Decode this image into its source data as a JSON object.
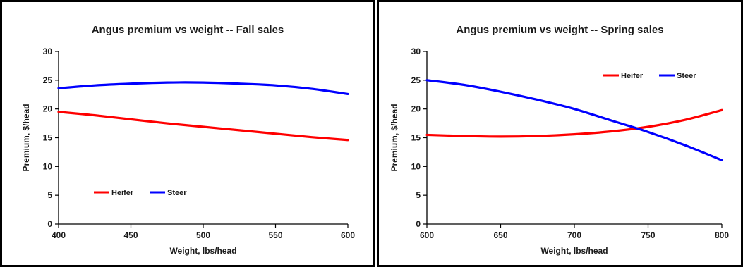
{
  "chart_data": [
    {
      "type": "line",
      "title": "Angus premium vs weight -- Fall sales",
      "xlabel": "Weight, lbs/head",
      "ylabel": "Premium, $/head",
      "xlim": [
        400,
        600
      ],
      "ylim": [
        0,
        30
      ],
      "xticks": [
        400,
        450,
        500,
        550,
        600
      ],
      "yticks": [
        0,
        5,
        10,
        15,
        20,
        25,
        30
      ],
      "grid": false,
      "legend": "bottom-left",
      "x": [
        400,
        425,
        450,
        475,
        500,
        525,
        550,
        575,
        600
      ],
      "series": [
        {
          "name": "Heifer",
          "color": "#ff0000",
          "values": [
            19.5,
            18.9,
            18.2,
            17.5,
            16.9,
            16.3,
            15.7,
            15.1,
            14.6
          ]
        },
        {
          "name": "Steer",
          "color": "#0000ff",
          "values": [
            23.6,
            24.1,
            24.4,
            24.6,
            24.6,
            24.4,
            24.1,
            23.5,
            22.6
          ]
        }
      ]
    },
    {
      "type": "line",
      "title": "Angus premium vs weight -- Spring sales",
      "xlabel": "Weight, lbs/head",
      "ylabel": "Premium, $/head",
      "xlim": [
        600,
        800
      ],
      "ylim": [
        0,
        30
      ],
      "xticks": [
        600,
        650,
        700,
        750,
        800
      ],
      "yticks": [
        0,
        5,
        10,
        15,
        20,
        25,
        30
      ],
      "grid": false,
      "legend": "top-right",
      "x": [
        600,
        625,
        650,
        675,
        700,
        725,
        750,
        775,
        800
      ],
      "series": [
        {
          "name": "Heifer",
          "color": "#ff0000",
          "values": [
            15.5,
            15.3,
            15.2,
            15.3,
            15.6,
            16.1,
            16.9,
            18.1,
            19.8
          ]
        },
        {
          "name": "Steer",
          "color": "#0000ff",
          "values": [
            25.0,
            24.2,
            23.0,
            21.6,
            20.0,
            18.0,
            16.0,
            13.7,
            11.1
          ]
        }
      ]
    }
  ]
}
